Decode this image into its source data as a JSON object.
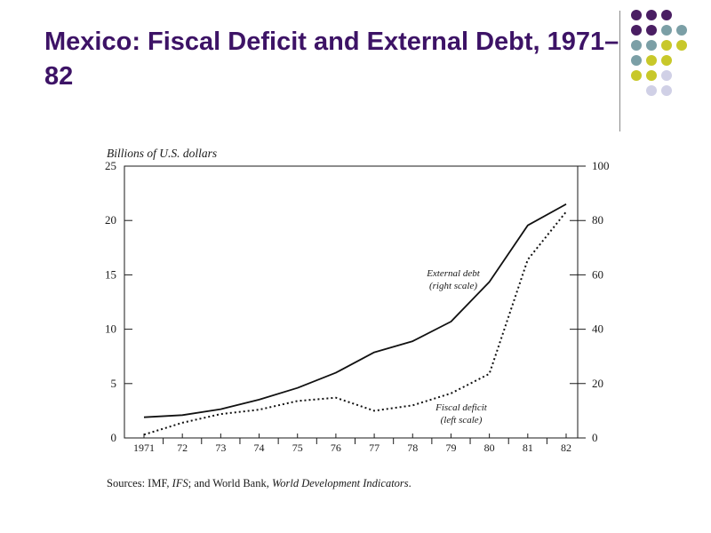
{
  "slide": {
    "title": "Mexico: Fiscal Deficit and External Debt, 1971–82",
    "palette": {
      "title": "#3d1366",
      "purple": "#4a1e63",
      "teal": "#7b9fa6",
      "lime": "#c8c82a",
      "lavender": "#d0d0e6"
    }
  },
  "chart_data": {
    "type": "line",
    "left_axis_label": "Billions of U.S. dollars",
    "left_ticks": [
      0,
      5,
      10,
      15,
      20,
      25
    ],
    "right_ticks": [
      0,
      20,
      40,
      60,
      80,
      100
    ],
    "left_range": [
      0,
      25
    ],
    "right_range": [
      0,
      100
    ],
    "categories": [
      "1971",
      "72",
      "73",
      "74",
      "75",
      "76",
      "77",
      "78",
      "79",
      "80",
      "81",
      "82"
    ],
    "x": [
      1971,
      1972,
      1973,
      1974,
      1975,
      1976,
      1977,
      1978,
      1979,
      1980,
      1981,
      1982
    ],
    "series": [
      {
        "name": "External debt",
        "label_lines": [
          "External debt",
          "(right scale)"
        ],
        "axis": "right",
        "style": "solid",
        "values": [
          7.6,
          8.4,
          10.6,
          14.1,
          18.4,
          24,
          31.5,
          35.6,
          42.8,
          57.4,
          78.2,
          86
        ]
      },
      {
        "name": "Fiscal deficit",
        "label_lines": [
          "Fiscal deficit",
          "(left scale)"
        ],
        "axis": "left",
        "style": "dotted",
        "values": [
          0.3,
          1.4,
          2.2,
          2.6,
          3.4,
          3.7,
          2.5,
          3.0,
          4.1,
          5.9,
          16.4,
          20.8
        ]
      }
    ],
    "source": {
      "prefix": "Sources: IMF, ",
      "ifs": "IFS",
      "middle": "; and World Bank, ",
      "wdi": "World Development Indicators",
      "suffix": "."
    }
  }
}
